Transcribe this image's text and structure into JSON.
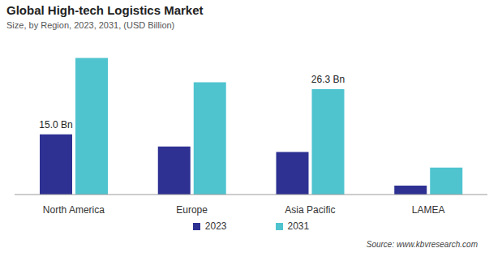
{
  "chart_data": {
    "type": "bar",
    "title": "Global High-tech Logistics Market",
    "subtitle": "Size, by Region, 2023, 2031, (USD Billion)",
    "source": "Source: www.kbvresearch.com",
    "categories": [
      "North America",
      "Europe",
      "Asia Pacific",
      "LAMEA"
    ],
    "series": [
      {
        "name": "2023",
        "color": "#2e3192",
        "values": [
          15.0,
          12.0,
          10.6,
          2.2
        ],
        "value_labels": [
          "15.0 Bn",
          null,
          null,
          null
        ]
      },
      {
        "name": "2031",
        "color": "#4fc4cf",
        "values": [
          34.1,
          28.0,
          26.3,
          6.7
        ],
        "value_labels": [
          null,
          null,
          "26.3 Bn",
          null
        ]
      }
    ],
    "ylim": [
      0,
      36
    ],
    "tick_labels": "x",
    "legend": "bottom"
  }
}
